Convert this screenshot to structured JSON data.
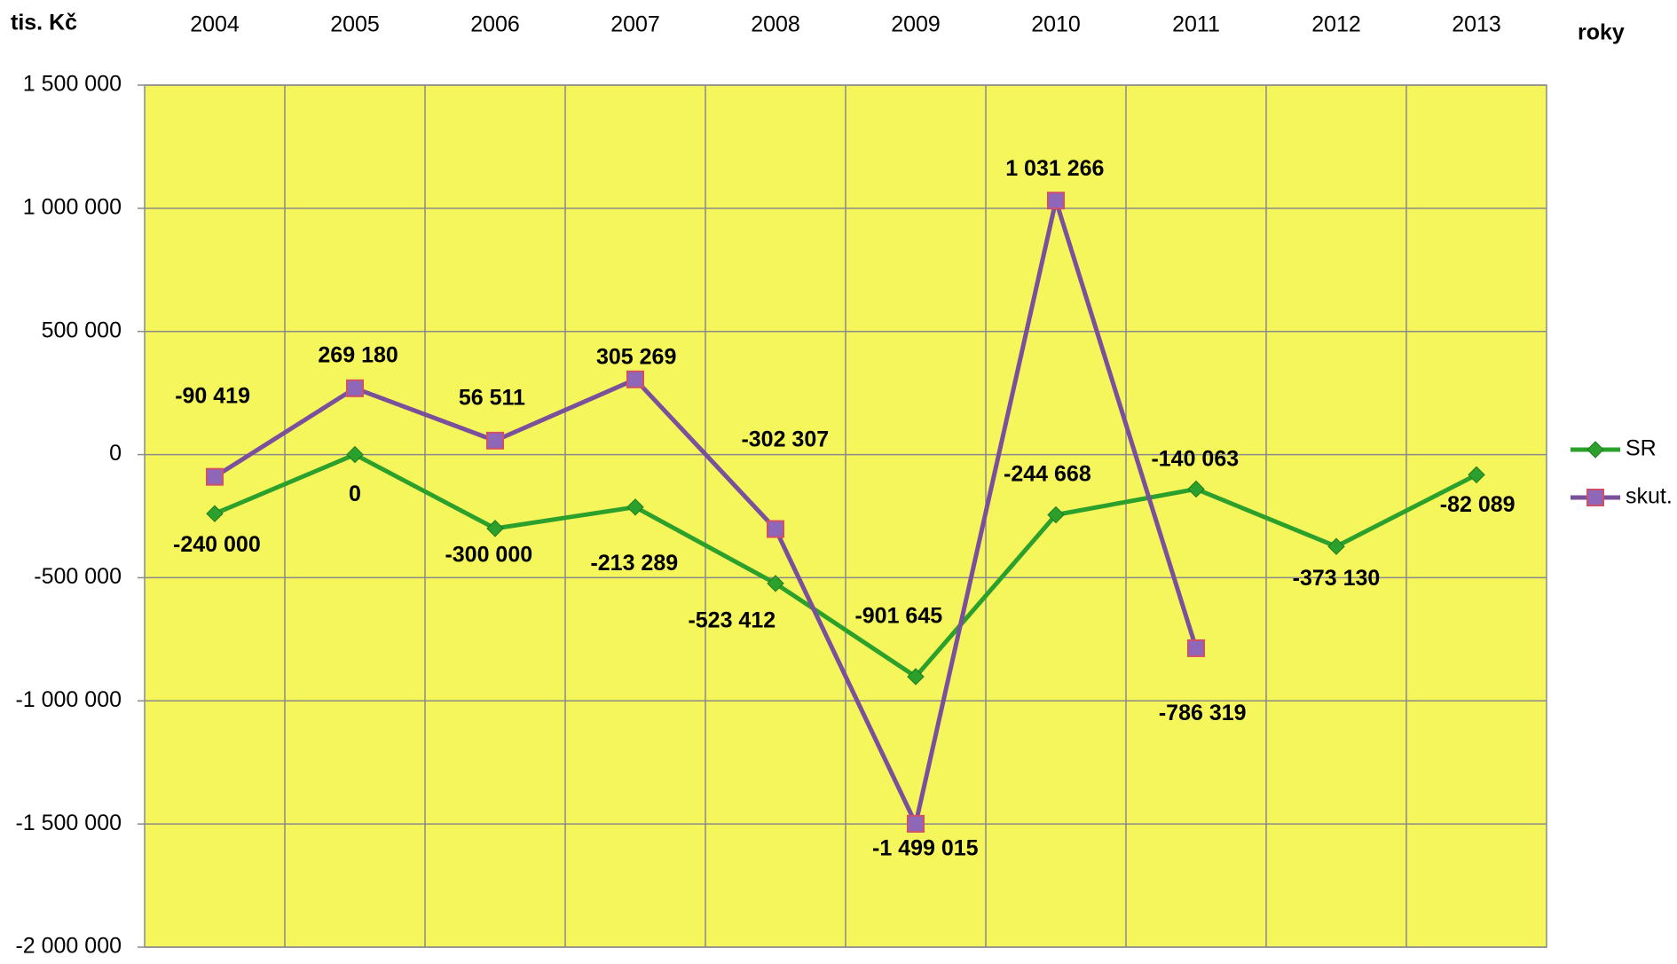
{
  "chart_data": {
    "type": "line",
    "y_label": "tis. Kč",
    "x_label": "roky",
    "categories": [
      "2004",
      "2005",
      "2006",
      "2007",
      "2008",
      "2009",
      "2010",
      "2011",
      "2012",
      "2013"
    ],
    "series": [
      {
        "name": "SR",
        "color": "#2ca02c",
        "marker": "diamond",
        "values": [
          -240000,
          0,
          -300000,
          -213289,
          -523412,
          -901645,
          -244668,
          -140063,
          -373130,
          -82089
        ],
        "value_labels": [
          "-240 000",
          "0",
          "-300 000",
          "-213 289",
          "-523 412",
          "-901 645",
          "-244 668",
          "-140 063",
          "-373 130",
          "-82 089"
        ]
      },
      {
        "name": "skut.",
        "color": "#7a4f9c",
        "marker": "square",
        "values": [
          -90419,
          269180,
          56511,
          305269,
          -302307,
          -1499015,
          1031266,
          -786319,
          null,
          null
        ],
        "value_labels": [
          "-90 419",
          "269 180",
          "56 511",
          "305 269",
          "-302 307",
          "-1 499 015",
          "1 031 266",
          "-786 319",
          null,
          null
        ]
      }
    ],
    "ylim": [
      -2000000,
      1500000
    ],
    "yticks": [
      {
        "value": 1500000,
        "label": "1 500 000"
      },
      {
        "value": 1000000,
        "label": "1 000 000"
      },
      {
        "value": 500000,
        "label": "500 000"
      },
      0,
      {
        "value": -500000,
        "label": "-500 000"
      },
      {
        "value": -1000000,
        "label": "-1 000 000"
      },
      {
        "value": -1500000,
        "label": "-1 500 000"
      },
      {
        "value": -2000000,
        "label": "-2 000 000"
      }
    ],
    "grid": true,
    "legend": "right"
  }
}
